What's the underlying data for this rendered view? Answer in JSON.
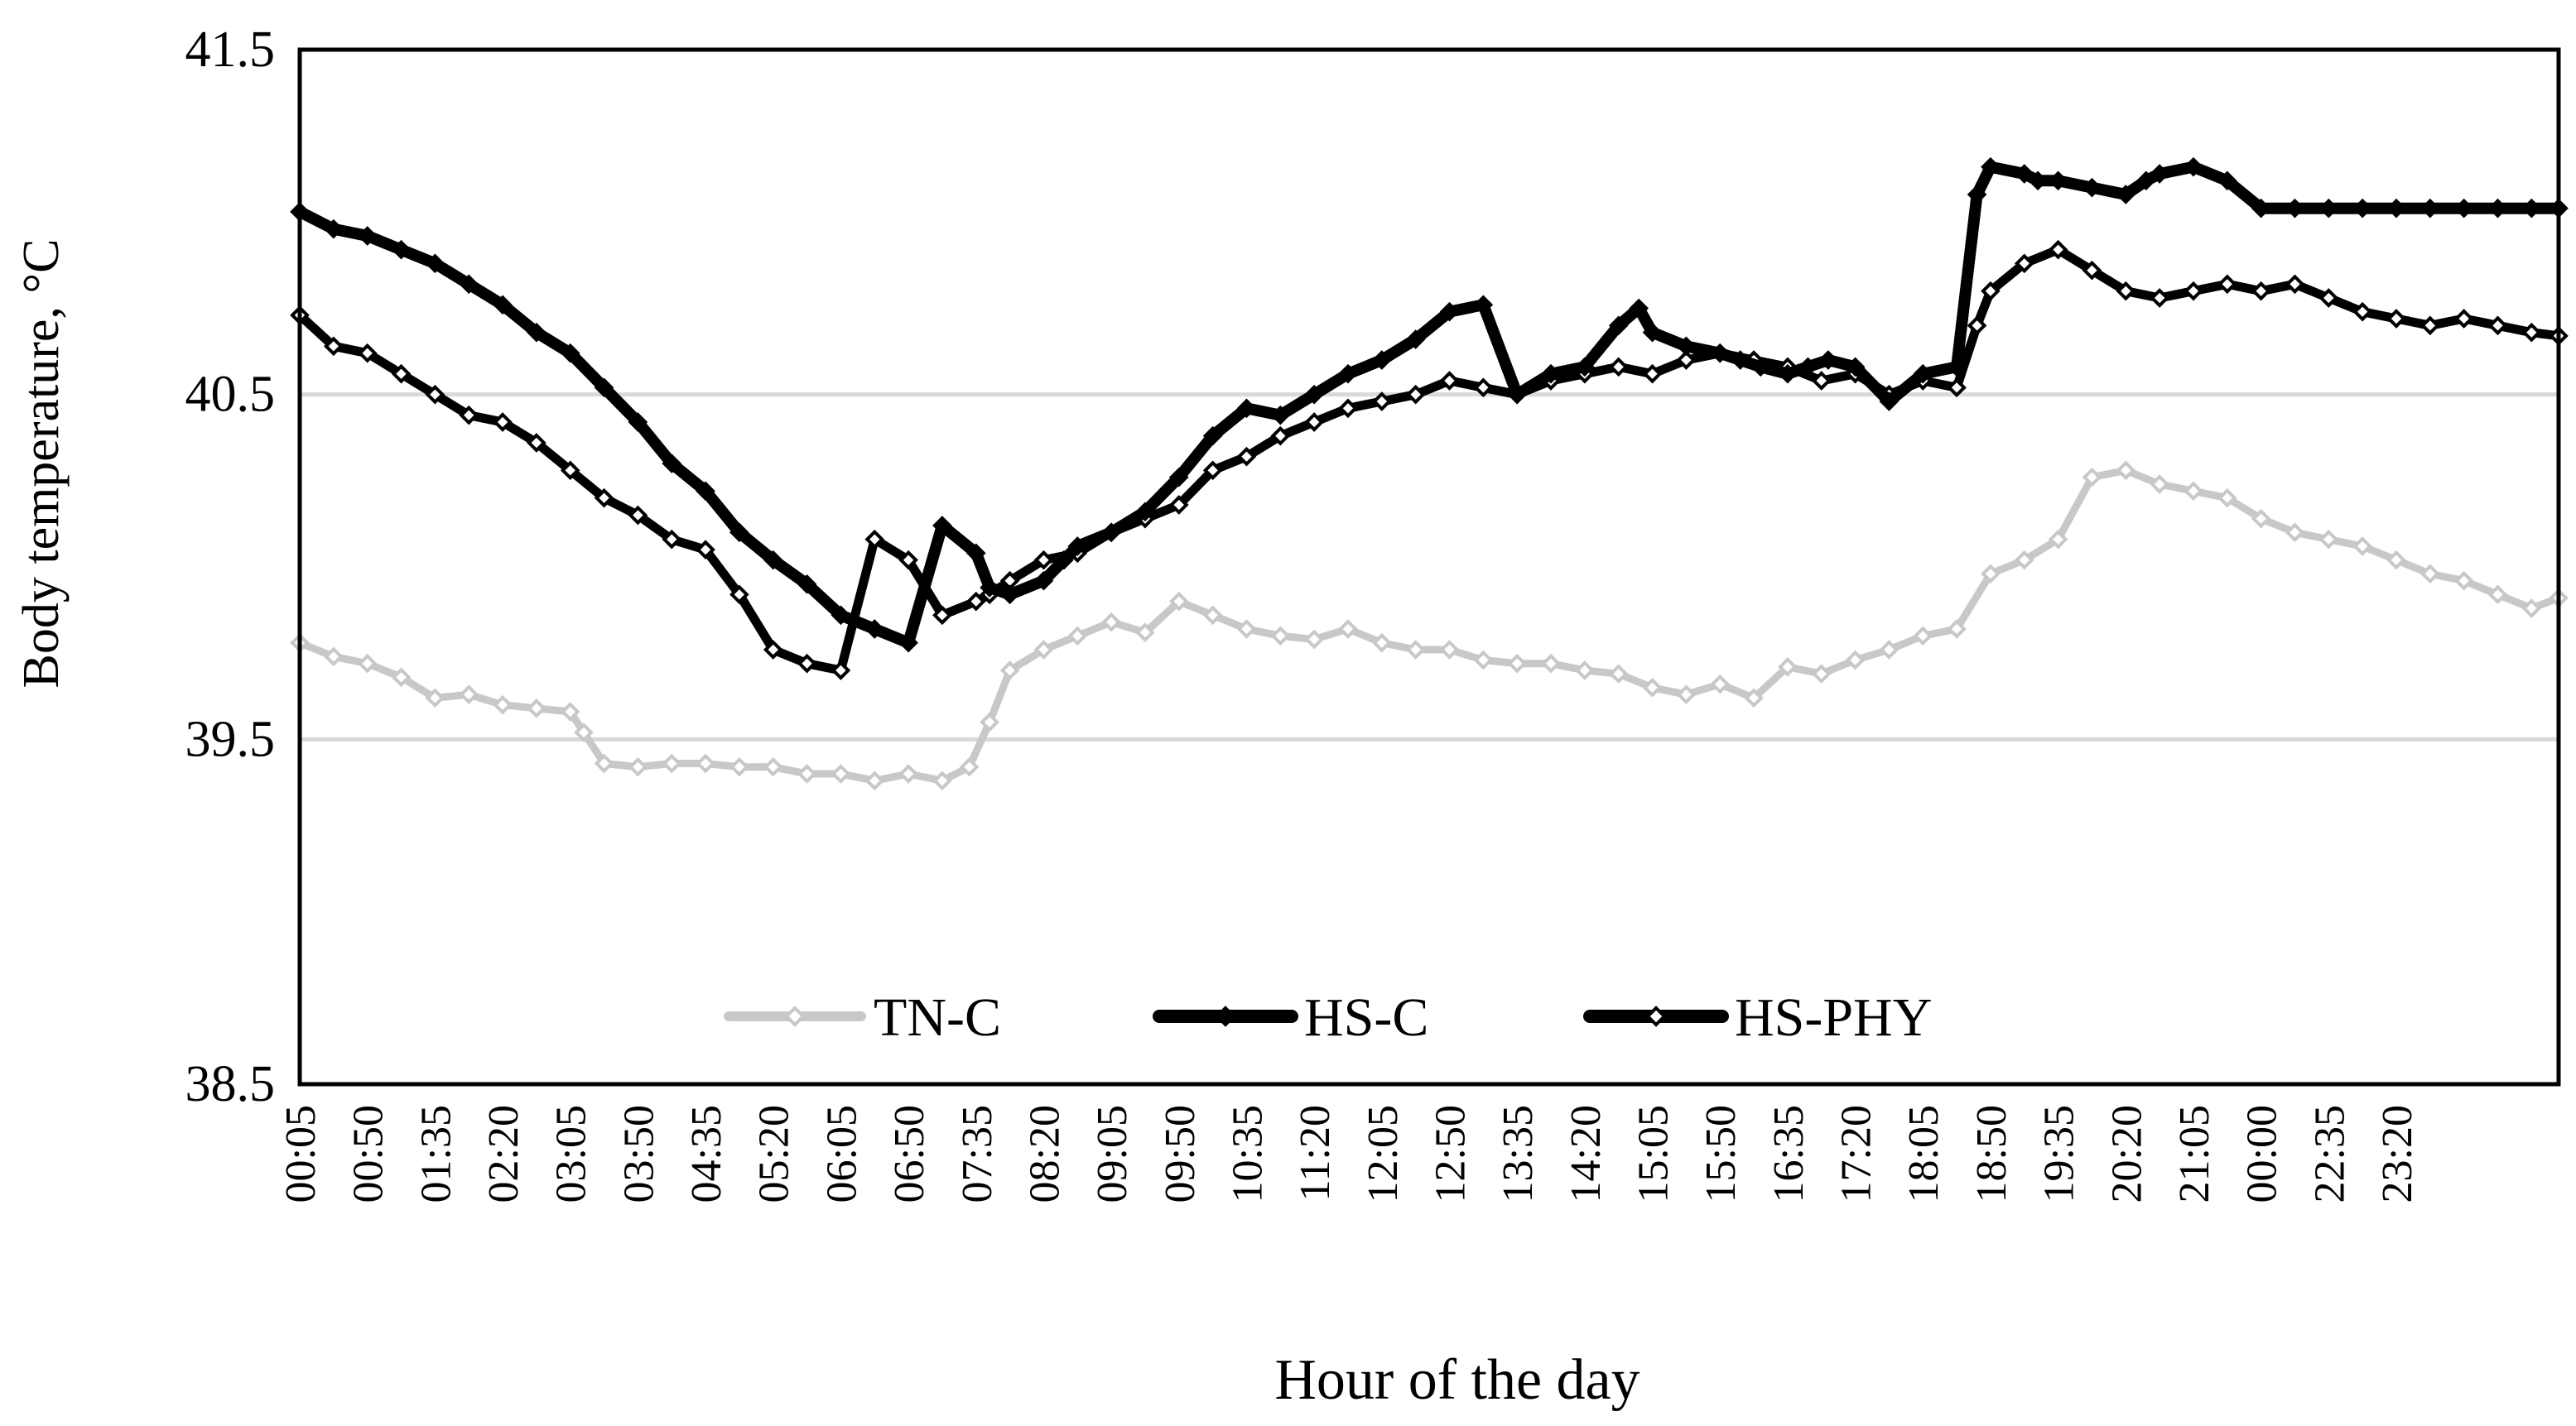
{
  "chart_data": {
    "type": "line",
    "xlabel": "Hour of the day",
    "ylabel": "Body temperature, °C",
    "ylim": [
      38.5,
      41.5
    ],
    "y_ticks": [
      "38.5",
      "39.5",
      "40.5",
      "41.5"
    ],
    "y_gridlines": [
      39.5,
      40.5
    ],
    "grid": "horizontal at 39.5 and 40.5",
    "legend_position": "bottom-center inside plot",
    "x_tick_labels": [
      "00:05",
      "00:50",
      "01:35",
      "02:20",
      "03:05",
      "03:50",
      "04:35",
      "05:20",
      "06:05",
      "06:50",
      "07:35",
      "08:20",
      "09:05",
      "09:50",
      "10:35",
      "11:20",
      "12:05",
      "12:50",
      "13:35",
      "14:20",
      "15:05",
      "15:50",
      "16:35",
      "17:20",
      "18:05",
      "18:50",
      "19:35",
      "20:20",
      "21:05",
      "00:00",
      "22:35",
      "23:20"
    ],
    "x_range": [
      0,
      33.4
    ],
    "series": [
      {
        "name": "TN-C",
        "color": "#c8c8c8",
        "marker": "open-diamond",
        "x": [
          0,
          0.5,
          1,
          1.5,
          2,
          2.5,
          3,
          3.5,
          4,
          4.2,
          4.5,
          5,
          5.5,
          6,
          6.5,
          7,
          7.5,
          8,
          8.5,
          9,
          9.5,
          9.9,
          10.2,
          10.5,
          11,
          11.5,
          12,
          12.5,
          13,
          13.5,
          14,
          14.5,
          15,
          15.5,
          16,
          16.5,
          17,
          17.5,
          18,
          18.5,
          19,
          19.5,
          20,
          20.5,
          21,
          21.5,
          22,
          22.5,
          23,
          23.5,
          24,
          24.5,
          25,
          25.5,
          26,
          26.5,
          27,
          27.5,
          28,
          28.5,
          29,
          29.5,
          30,
          30.5,
          31,
          31.5,
          32,
          32.5,
          33,
          33.4
        ],
        "y": [
          39.78,
          39.74,
          39.72,
          39.68,
          39.62,
          39.63,
          39.6,
          39.59,
          39.58,
          39.52,
          39.43,
          39.42,
          39.43,
          39.43,
          39.42,
          39.42,
          39.4,
          39.4,
          39.38,
          39.4,
          39.38,
          39.42,
          39.55,
          39.7,
          39.76,
          39.8,
          39.84,
          39.81,
          39.9,
          39.86,
          39.82,
          39.8,
          39.79,
          39.82,
          39.78,
          39.76,
          39.76,
          39.73,
          39.72,
          39.72,
          39.7,
          39.69,
          39.65,
          39.63,
          39.66,
          39.62,
          39.71,
          39.69,
          39.73,
          39.76,
          39.8,
          39.82,
          39.98,
          40.02,
          40.08,
          40.26,
          40.28,
          40.24,
          40.22,
          40.2,
          40.14,
          40.1,
          40.08,
          40.06,
          40.02,
          39.98,
          39.96,
          39.92,
          39.88,
          39.91
        ]
      },
      {
        "name": "HS-C",
        "color": "#000000",
        "marker": "filled-diamond",
        "x": [
          0,
          0.5,
          1,
          1.5,
          2,
          2.5,
          3,
          3.5,
          4,
          4.5,
          5,
          5.5,
          6,
          6.5,
          7,
          7.5,
          8,
          8.5,
          9,
          9.5,
          10,
          10.2,
          10.5,
          11,
          11.3,
          11.5,
          12,
          12.5,
          13,
          13.5,
          14,
          14.5,
          15,
          15.5,
          16,
          16.5,
          17,
          17.5,
          18,
          18.5,
          19,
          19.5,
          19.8,
          20,
          20.5,
          21,
          21.3,
          21.6,
          22,
          22.3,
          22.6,
          23,
          23.5,
          24,
          24.5,
          24.8,
          25,
          25.5,
          25.7,
          26,
          26.5,
          27,
          27.3,
          27.5,
          28,
          28.5,
          29,
          29.5,
          30,
          30.5,
          31,
          31.5,
          32,
          32.5,
          33,
          33.4
        ],
        "y": [
          41.03,
          40.98,
          40.96,
          40.92,
          40.88,
          40.82,
          40.76,
          40.68,
          40.62,
          40.52,
          40.42,
          40.3,
          40.22,
          40.1,
          40.02,
          39.95,
          39.86,
          39.82,
          39.78,
          40.12,
          40.04,
          39.94,
          39.92,
          39.96,
          40.02,
          40.06,
          40.1,
          40.16,
          40.26,
          40.38,
          40.46,
          40.44,
          40.5,
          40.56,
          40.6,
          40.66,
          40.74,
          40.76,
          40.5,
          40.56,
          40.58,
          40.7,
          40.75,
          40.68,
          40.64,
          40.62,
          40.6,
          40.58,
          40.56,
          40.58,
          40.6,
          40.58,
          40.48,
          40.56,
          40.58,
          41.08,
          41.16,
          41.14,
          41.12,
          41.12,
          41.1,
          41.08,
          41.12,
          41.14,
          41.16,
          41.12,
          41.04,
          41.04,
          41.04,
          41.04,
          41.04,
          41.04,
          41.04,
          41.04,
          41.04,
          41.04
        ]
      },
      {
        "name": "HS-PHY",
        "color": "#000000",
        "marker": "open-diamond",
        "x": [
          0,
          0.5,
          1,
          1.5,
          2,
          2.5,
          3,
          3.5,
          4,
          4.5,
          5,
          5.5,
          6,
          6.5,
          7,
          7.5,
          8,
          8.5,
          9,
          9.5,
          10,
          10.2,
          10.5,
          11,
          11.5,
          12,
          12.5,
          13,
          13.5,
          14,
          14.5,
          15,
          15.5,
          16,
          16.5,
          17,
          17.5,
          18,
          18.5,
          19,
          19.5,
          20,
          20.5,
          21,
          21.5,
          22,
          22.5,
          23,
          23.5,
          24,
          24.5,
          24.8,
          25,
          25.5,
          26,
          26.5,
          27,
          27.5,
          28,
          28.5,
          29,
          29.5,
          30,
          30.5,
          31,
          31.5,
          32,
          32.5,
          33,
          33.4
        ],
        "y": [
          40.73,
          40.64,
          40.62,
          40.56,
          40.5,
          40.44,
          40.42,
          40.36,
          40.28,
          40.2,
          40.15,
          40.08,
          40.05,
          39.92,
          39.76,
          39.72,
          39.7,
          40.08,
          40.02,
          39.86,
          39.9,
          39.92,
          39.96,
          40.02,
          40.04,
          40.1,
          40.14,
          40.18,
          40.28,
          40.32,
          40.38,
          40.42,
          40.46,
          40.48,
          40.5,
          40.54,
          40.52,
          40.5,
          40.54,
          40.56,
          40.58,
          40.56,
          40.6,
          40.62,
          40.6,
          40.58,
          40.54,
          40.56,
          40.5,
          40.54,
          40.52,
          40.7,
          40.8,
          40.88,
          40.92,
          40.86,
          40.8,
          40.78,
          40.8,
          40.82,
          40.8,
          40.82,
          40.78,
          40.74,
          40.72,
          40.7,
          40.72,
          40.7,
          40.68,
          40.67
        ]
      }
    ]
  }
}
